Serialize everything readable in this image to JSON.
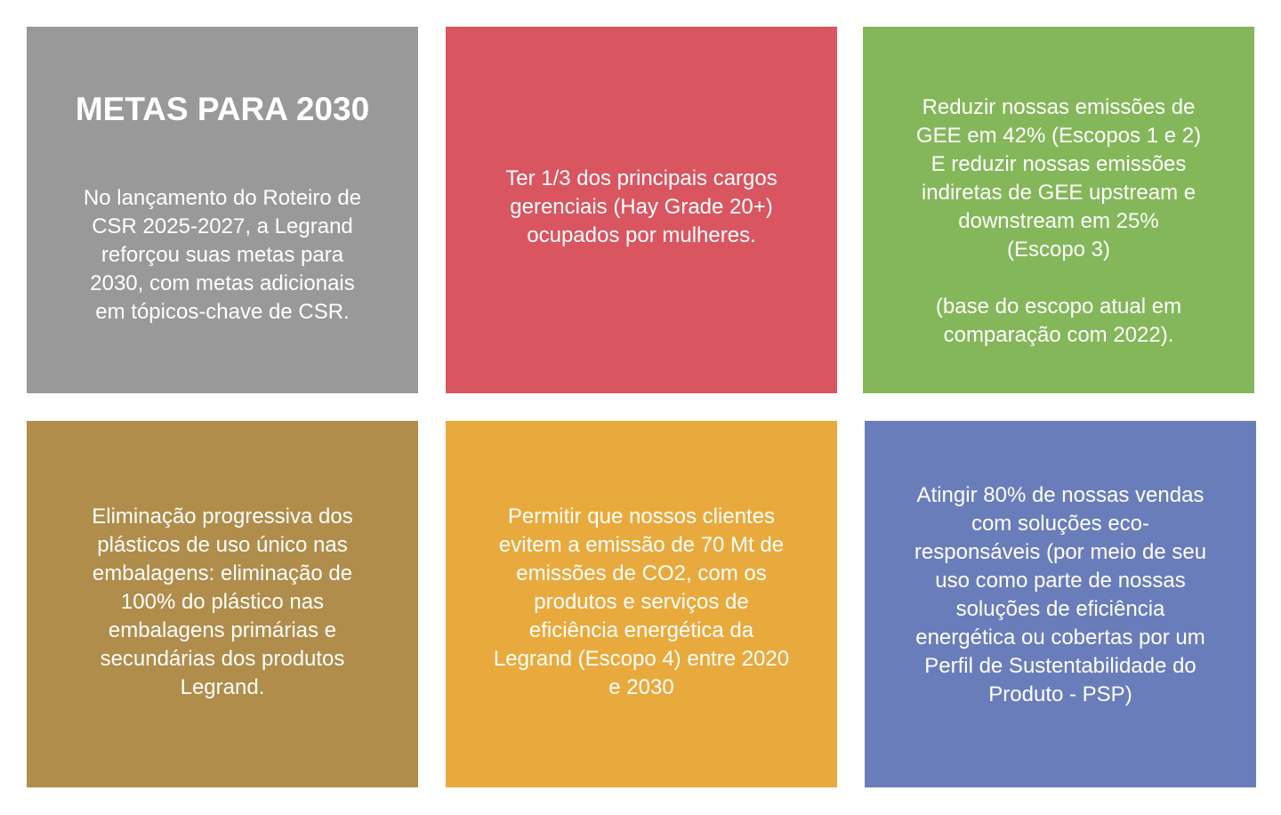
{
  "cards": [
    {
      "title": "METAS PARA 2030",
      "text": "No lançamento do Roteiro de\nCSR 2025-2027, a Legrand\nreforçou suas metas para\n2030, com metas adicionais\nem tópicos-chave de CSR.",
      "color": "#999999"
    },
    {
      "text": "Ter 1/3 dos principais cargos\ngerenciais (Hay Grade 20+)\nocupados por mulheres.",
      "color": "#d95560"
    },
    {
      "text": "Reduzir nossas emissões de\nGEE em 42% (Escopos 1 e 2)\nE reduzir nossas emissões\nindiretas de GEE upstream e\ndownstream em 25%\n(Escopo 3)\n\n(base do escopo atual em\ncomparação com 2022).",
      "color": "#84b75a"
    },
    {
      "text": "Eliminação progressiva dos\nplásticos de uso único nas\nembalagens: eliminação de\n100% do plástico nas\nembalagens primárias e\nsecundárias dos produtos\nLegrand.",
      "color": "#b08d4b"
    },
    {
      "text": "Permitir que nossos clientes\nevitem a emissão de 70 Mt de\nemissões de CO2, com os\nprodutos e serviços de\neficiência energética da\nLegrand (Escopo 4) entre 2020\ne 2030",
      "color": "#e9aa3d"
    },
    {
      "text": "Atingir 80% de nossas vendas\ncom soluções eco-\nresponsáveis (por meio de seu\nuso como parte de nossas\nsoluções de eficiência\nenergética ou cobertas por um\nPerfil de Sustentabilidade do\nProduto - PSP)",
      "color": "#6a7dbb"
    }
  ]
}
